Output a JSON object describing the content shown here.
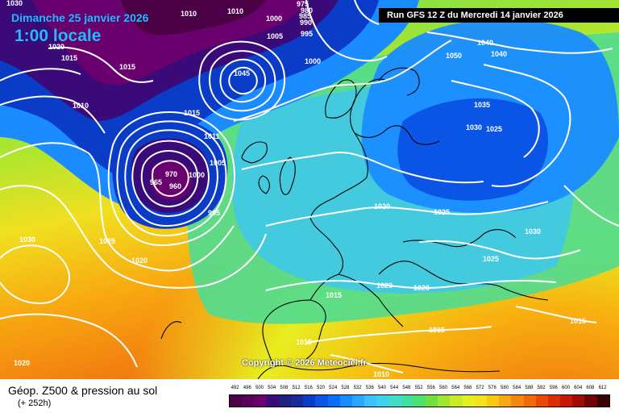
{
  "header": {
    "date": "Dimanche 25 janvier 2026",
    "time": "1:00 locale",
    "run_info": "Run GFS 12 Z du Mercredi 14 janvier 2026"
  },
  "map": {
    "copyright": "Copyright © 2026 Meteociel.fr",
    "isobar_labels": {
      "l1030a": "1030",
      "l1010a": "1010",
      "l1020a": "1020",
      "l1015a": "1015",
      "l1015b": "1015",
      "l1010b": "1010",
      "l1000a": "1000",
      "l1010c": "1010",
      "l985": "985",
      "l980": "980",
      "l975": "975",
      "l990": "990",
      "l995a": "995",
      "l1005a": "1005",
      "l1000b": "1000",
      "l1045a": "1045",
      "l1050": "1050",
      "l1040": "1040",
      "l1035": "1035",
      "l1030b": "1030",
      "l1025a": "1025",
      "l1015c": "1015",
      "l1011": "1011",
      "l1005b": "1005",
      "l1000c": "1000",
      "l970": "970",
      "l965": "965",
      "l960": "960",
      "l995b": "995",
      "l1030c": "1030",
      "l1025b": "1025",
      "l1020b": "1020",
      "l1020c": "1020",
      "l1025c": "1025",
      "l1030d": "1030",
      "l1025d": "1025",
      "l1020d": "1020",
      "l1020e": "1020",
      "l1015d": "1015",
      "l1015e": "1015",
      "l1010d": "1010",
      "l1015f": "1015",
      "l1020f": "1020",
      "l1010e": "1010",
      "l1040b": "1040"
    }
  },
  "footer": {
    "product": "Géop. Z500 & pression au sol",
    "lead": "(+ 252h)"
  },
  "legend": {
    "ticks": [
      "492",
      "496",
      "500",
      "504",
      "508",
      "512",
      "516",
      "520",
      "524",
      "528",
      "532",
      "536",
      "540",
      "544",
      "548",
      "552",
      "556",
      "560",
      "564",
      "568",
      "572",
      "576",
      "580",
      "584",
      "588",
      "592",
      "596",
      "600",
      "604",
      "608",
      "612"
    ],
    "colors": [
      "#4b0046",
      "#5a005a",
      "#6a006e",
      "#3a0a78",
      "#202080",
      "#1a2a9a",
      "#0a3cc8",
      "#0a55e6",
      "#0a6ef5",
      "#1a8cff",
      "#2aa8ff",
      "#3cc0ff",
      "#40d0f0",
      "#40dccc",
      "#40e0a0",
      "#50e070",
      "#70e040",
      "#a0e630",
      "#c8ec28",
      "#e6f020",
      "#f5e21a",
      "#f8c814",
      "#f8a810",
      "#f5880c",
      "#f06a08",
      "#e84a06",
      "#dc2c04",
      "#c41a04",
      "#a00c04",
      "#700404",
      "#3a0000"
    ]
  }
}
